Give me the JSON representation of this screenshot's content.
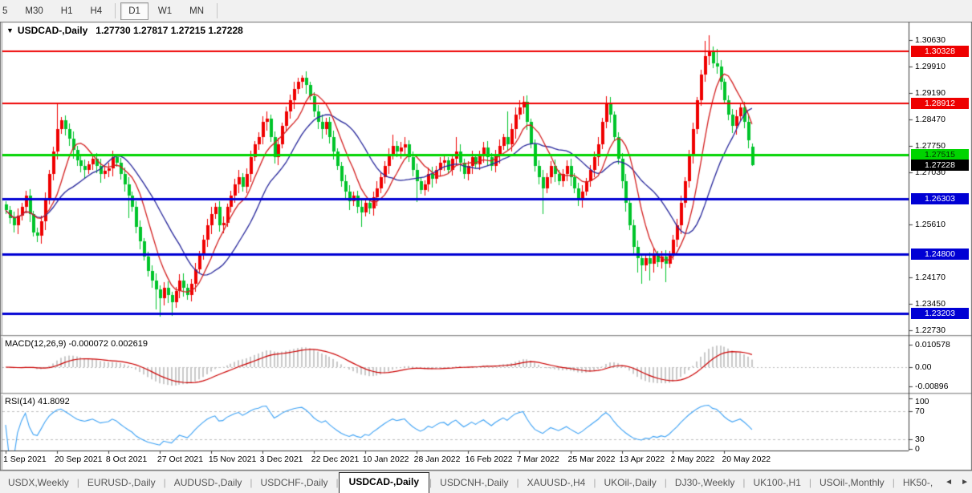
{
  "toolbar": {
    "timeframes": [
      "5",
      "M30",
      "H1",
      "H4",
      "D1",
      "W1",
      "MN"
    ],
    "active": "D1"
  },
  "chart": {
    "title": "USDCAD-,Daily",
    "ohlc_label": "1.27730 1.27817 1.27215 1.27228",
    "dropdown_icon": "▼"
  },
  "chart_data": {
    "type": "candlestick",
    "symbol": "USDCAD-,Daily",
    "colors": {
      "bull": "#ef0000",
      "bear": "#00c42a",
      "ma_fast": "#d42020",
      "ma_slow": "#26269b",
      "macd_hist": "#c9c9c9",
      "macd_signal": "#cc0000",
      "rsi_line": "#3da2f5"
    },
    "ma_periods": {
      "fast": 8,
      "slow": 18
    },
    "y_axis_ticks": [
      "1.30630",
      "1.29910",
      "1.29190",
      "1.28470",
      "1.27750",
      "1.27030",
      "1.25610",
      "1.24170",
      "1.23450",
      "1.22730"
    ],
    "x_axis_labels": [
      "1 Sep 2021",
      "20 Sep 2021",
      "8 Oct 2021",
      "27 Oct 2021",
      "15 Nov 2021",
      "3 Dec 2021",
      "22 Dec 2021",
      "10 Jan 2022",
      "28 Jan 2022",
      "16 Feb 2022",
      "7 Mar 2022",
      "25 Mar 2022",
      "13 Apr 2022",
      "2 May 2022",
      "20 May 2022"
    ],
    "bars_per_label": 13,
    "hlines": [
      {
        "price": 1.30328,
        "label": "1.30328",
        "color": "#ee0000",
        "width": 2,
        "text": "#ffffff"
      },
      {
        "price": 1.28912,
        "label": "1.28912",
        "color": "#ee0000",
        "width": 2,
        "text": "#ffffff"
      },
      {
        "price": 1.27515,
        "label": "1.27515",
        "color": "#00d400",
        "width": 3,
        "text": "#003300"
      },
      {
        "price": 1.26303,
        "label": "1.26303",
        "color": "#0000d4",
        "width": 3,
        "text": "#ffffff"
      },
      {
        "price": 1.248,
        "label": "1.24800",
        "color": "#0000d4",
        "width": 3,
        "text": "#ffffff"
      },
      {
        "price": 1.23203,
        "label": "1.23203",
        "color": "#0000d4",
        "width": 3,
        "text": "#ffffff"
      }
    ],
    "current_price": {
      "value": 1.27228,
      "label": "1.27228",
      "bg": "#000000",
      "text": "#ffffff"
    },
    "last_bar": {
      "open": 1.2773,
      "high": 1.27817,
      "low": 1.27215,
      "close": 1.27228
    },
    "first_open": 1.2615,
    "closes": [
      1.26,
      1.258,
      1.256,
      1.2585,
      1.261,
      1.264,
      1.259,
      1.254,
      1.253,
      1.257,
      1.263,
      1.27,
      1.276,
      1.282,
      1.2845,
      1.282,
      1.2795,
      1.2765,
      1.2735,
      1.272,
      1.271,
      1.2725,
      1.274,
      1.272,
      1.27,
      1.2708,
      1.2715,
      1.2745,
      1.273,
      1.27,
      1.267,
      1.264,
      1.261,
      1.2555,
      1.2515,
      1.2475,
      1.2435,
      1.241,
      1.2385,
      1.236,
      1.239,
      1.237,
      1.235,
      1.238,
      1.241,
      1.239,
      1.237,
      1.24,
      1.244,
      1.248,
      1.252,
      1.256,
      1.259,
      1.261,
      1.256,
      1.2565,
      1.261,
      1.264,
      1.267,
      1.269,
      1.2665,
      1.27,
      1.2745,
      1.278,
      1.28,
      1.284,
      1.285,
      1.28,
      1.2745,
      1.278,
      1.283,
      1.287,
      1.29,
      1.293,
      1.295,
      1.296,
      1.294,
      1.291,
      1.287,
      1.284,
      1.282,
      1.284,
      1.28,
      1.276,
      1.272,
      1.268,
      1.265,
      1.2625,
      1.264,
      1.261,
      1.2595,
      1.262,
      1.2605,
      1.2635,
      1.266,
      1.269,
      1.272,
      1.275,
      1.2775,
      1.276,
      1.277,
      1.278,
      1.2745,
      1.271,
      1.268,
      1.2655,
      1.267,
      1.27,
      1.2685,
      1.271,
      1.273,
      1.2735,
      1.271,
      1.274,
      1.276,
      1.273,
      1.27,
      1.272,
      1.2745,
      1.2725,
      1.275,
      1.277,
      1.2745,
      1.272,
      1.275,
      1.2775,
      1.28,
      1.278,
      1.282,
      1.286,
      1.288,
      1.2895,
      1.284,
      1.278,
      1.272,
      1.269,
      1.266,
      1.269,
      1.272,
      1.27,
      1.268,
      1.27,
      1.272,
      1.269,
      1.266,
      1.263,
      1.265,
      1.268,
      1.271,
      1.2745,
      1.278,
      1.284,
      1.289,
      1.286,
      1.28,
      1.274,
      1.268,
      1.262,
      1.256,
      1.25,
      1.247,
      1.245,
      1.247,
      1.2455,
      1.248,
      1.246,
      1.2475,
      1.2455,
      1.248,
      1.252,
      1.256,
      1.262,
      1.268,
      1.275,
      1.282,
      1.29,
      1.297,
      1.302,
      1.3035,
      1.3,
      1.299,
      1.295,
      1.29,
      1.286,
      1.283,
      1.2855,
      1.288,
      1.284,
      1.279,
      1.27228
    ],
    "wick_overrides": {
      "13": [
        1.289,
        null
      ],
      "31": [
        null,
        1.258
      ],
      "38": [
        null,
        1.233
      ],
      "39": [
        null,
        1.231
      ],
      "42": [
        null,
        1.2313
      ],
      "75": [
        1.2967,
        null
      ],
      "90": [
        null,
        1.2555
      ],
      "98": [
        1.2805,
        null
      ],
      "104": [
        null,
        1.2623
      ],
      "114": [
        1.28,
        null
      ],
      "127": [
        1.287,
        null
      ],
      "130": [
        1.29,
        null
      ],
      "131": [
        1.291,
        null
      ],
      "136": [
        null,
        1.259
      ],
      "152": [
        1.291,
        null
      ],
      "160": [
        null,
        1.243
      ],
      "161": [
        null,
        1.24
      ],
      "163": [
        null,
        1.241
      ],
      "167": [
        null,
        1.2405
      ],
      "177": [
        1.306,
        null
      ],
      "178": [
        1.3077,
        null
      ],
      "180": [
        1.304,
        null
      ],
      "189": [
        1.27817,
        1.27215
      ]
    },
    "macd": {
      "label": "MACD(12,26,9) -0.000072 0.002619",
      "params": [
        12,
        26,
        9
      ],
      "ticks": [
        {
          "text": "0.010578",
          "value": 0.010578
        },
        {
          "text": "0.00",
          "value": 0
        },
        {
          "text": "-0.00896",
          "value": -0.00896
        }
      ]
    },
    "rsi": {
      "label": "RSI(14) 41.8092",
      "period": 14,
      "levels": [
        70,
        30
      ],
      "ticks": [
        {
          "text": "100",
          "value": 100
        },
        {
          "text": "70",
          "value": 70
        },
        {
          "text": "30",
          "value": 30
        },
        {
          "text": "0",
          "value": 0
        }
      ]
    }
  },
  "tabs": {
    "items": [
      "USDX,Weekly",
      "EURUSD-,Daily",
      "AUDUSD-,Daily",
      "USDCHF-,Daily",
      "USDCAD-,Daily",
      "USDCNH-,Daily",
      "XAUUSD-,H4",
      "UKOil-,Daily",
      "DJ30-,Weekly",
      "UK100-,H1",
      "USOil-,Monthly",
      "HK50-,"
    ],
    "active": "USDCAD-,Daily",
    "scroll_left": "◄",
    "scroll_right": "►"
  }
}
